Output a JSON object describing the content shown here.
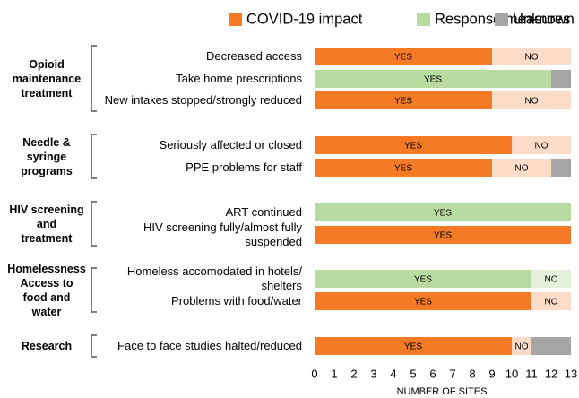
{
  "chart_data": {
    "type": "stacked_barh",
    "categories": [
      "Decreased access",
      "Take home prescriptions",
      "New intakes stopped/strongly reduced",
      "Seriously affected or closed",
      "PPE problems for staff",
      "ART continued",
      "HIV screening fully/almost fully\nsuspended",
      "Homeless accomodated in hotels/\nshelters",
      "Problems with food/water",
      "Face to face studies halted/reduced"
    ],
    "groups": [
      "Opioid\nmaintenance\ntreatment",
      "Needle &\nsyringe\nprograms",
      "HIV screening\nand\ntreatment",
      "Homelessness\nAccess to\nfood and\nwater",
      "Research"
    ],
    "series": [
      {
        "name": "COVID-19 impact",
        "color": "#f47a26",
        "values": [
          9,
          null,
          9,
          10,
          9,
          null,
          13,
          null,
          11,
          10
        ],
        "value_labels": [
          "YES",
          null,
          "YES",
          "YES",
          "YES",
          null,
          "YES",
          null,
          "YES",
          "YES"
        ]
      },
      {
        "name": "Response measures",
        "color": "#b7dba0",
        "values": [
          null,
          12,
          null,
          null,
          null,
          13,
          null,
          11,
          null,
          null
        ],
        "value_labels": [
          null,
          "YES",
          null,
          null,
          null,
          "YES",
          null,
          "YES",
          null,
          null
        ]
      },
      {
        "color": "#fcdcc9",
        "values": [
          4,
          null,
          4,
          3,
          3,
          null,
          null,
          null,
          2,
          1
        ],
        "value_labels": [
          "NO",
          null,
          "NO",
          "NO",
          "NO",
          null,
          null,
          null,
          "NO",
          "NO"
        ]
      },
      {
        "color": "#e4f1da",
        "values": [
          null,
          null,
          null,
          null,
          null,
          null,
          null,
          2,
          null,
          null
        ],
        "value_labels": [
          null,
          null,
          null,
          null,
          null,
          null,
          null,
          "NO",
          null,
          null
        ]
      },
      {
        "name": "Unknown",
        "color": "#a6a6a6",
        "values": [
          null,
          1,
          null,
          null,
          1,
          null,
          null,
          null,
          null,
          2
        ]
      }
    ],
    "xlabel": "NUMBER OF SITES",
    "xlim": [
      0,
      13
    ],
    "xticks": [
      0,
      1,
      2,
      3,
      4,
      5,
      6,
      7,
      8,
      9,
      10,
      11,
      12,
      13
    ]
  }
}
